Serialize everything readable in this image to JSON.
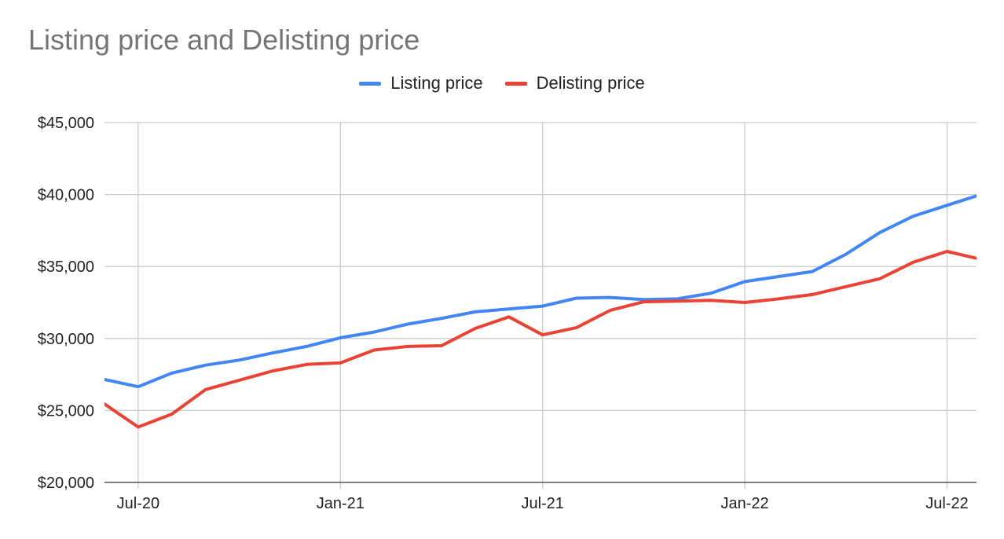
{
  "chart_data": {
    "type": "line",
    "title": "Listing price and Delisting price",
    "xlabel": "",
    "ylabel": "",
    "x": [
      "2020-06",
      "2020-07",
      "2020-08",
      "2020-09",
      "2020-10",
      "2020-11",
      "2020-12",
      "2021-01",
      "2021-02",
      "2021-03",
      "2021-04",
      "2021-05",
      "2021-06",
      "2021-07",
      "2021-08",
      "2021-09",
      "2021-10",
      "2021-11",
      "2021-12",
      "2022-01",
      "2022-02",
      "2022-03",
      "2022-04",
      "2022-05",
      "2022-06",
      "2022-07",
      "2022-08"
    ],
    "x_tick_labels": [
      "Jul-20",
      "Jan-21",
      "Jul-21",
      "Jan-22",
      "Jul-22"
    ],
    "x_tick_values": [
      "2020-07",
      "2021-01",
      "2021-07",
      "2022-01",
      "2022-07"
    ],
    "y_tick_labels": [
      "$45,000",
      "$40,000",
      "$35,000",
      "$30,000",
      "$25,000",
      "$20,000"
    ],
    "y_tick_values": [
      45000,
      40000,
      35000,
      30000,
      25000,
      20000
    ],
    "ylim": [
      20000,
      45000
    ],
    "grid": true,
    "legend_position": "top-center",
    "series": [
      {
        "name": "Listing price",
        "color": "#4285f4",
        "values": [
          27150,
          26650,
          27600,
          28150,
          28500,
          29000,
          29450,
          30050,
          30450,
          31000,
          31400,
          31850,
          32050,
          32250,
          32800,
          32850,
          32700,
          32750,
          33150,
          33950,
          34300,
          34650,
          35850,
          37350,
          38500,
          39250,
          40000
        ]
      },
      {
        "name": "Delisting price",
        "color": "#ea4335",
        "values": [
          25450,
          23850,
          24750,
          26450,
          27100,
          27750,
          28200,
          28300,
          29200,
          29450,
          29500,
          30700,
          31500,
          30250,
          30750,
          31950,
          32550,
          32600,
          32650,
          32500,
          32750,
          33050,
          33600,
          34150,
          35300,
          36050,
          35500
        ]
      }
    ]
  }
}
